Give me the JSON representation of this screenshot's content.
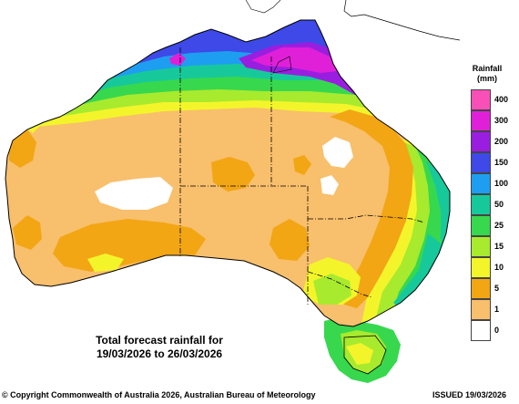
{
  "legend": {
    "title_line1": "Rainfall",
    "title_line2": "(mm)",
    "items": [
      {
        "label": "400",
        "color": "#f950b8"
      },
      {
        "label": "300",
        "color": "#e020d8"
      },
      {
        "label": "200",
        "color": "#9a1ee0"
      },
      {
        "label": "150",
        "color": "#3e49e8"
      },
      {
        "label": "100",
        "color": "#1e9ef0"
      },
      {
        "label": "50",
        "color": "#17c99a"
      },
      {
        "label": "25",
        "color": "#37d84e"
      },
      {
        "label": "15",
        "color": "#a8ea2e"
      },
      {
        "label": "10",
        "color": "#f3f52a"
      },
      {
        "label": "5",
        "color": "#f2a614"
      },
      {
        "label": "1",
        "color": "#f8bf6c"
      },
      {
        "label": "0",
        "color": "#ffffff"
      }
    ]
  },
  "caption": {
    "line1": "Total forecast rainfall for",
    "line2": "19/03/2026 to 26/03/2026"
  },
  "footer": {
    "copyright": "© Copyright Commonwealth of Australia 2026, Australian Bureau of Meteorology",
    "issued": "ISSUED 19/03/2026"
  }
}
